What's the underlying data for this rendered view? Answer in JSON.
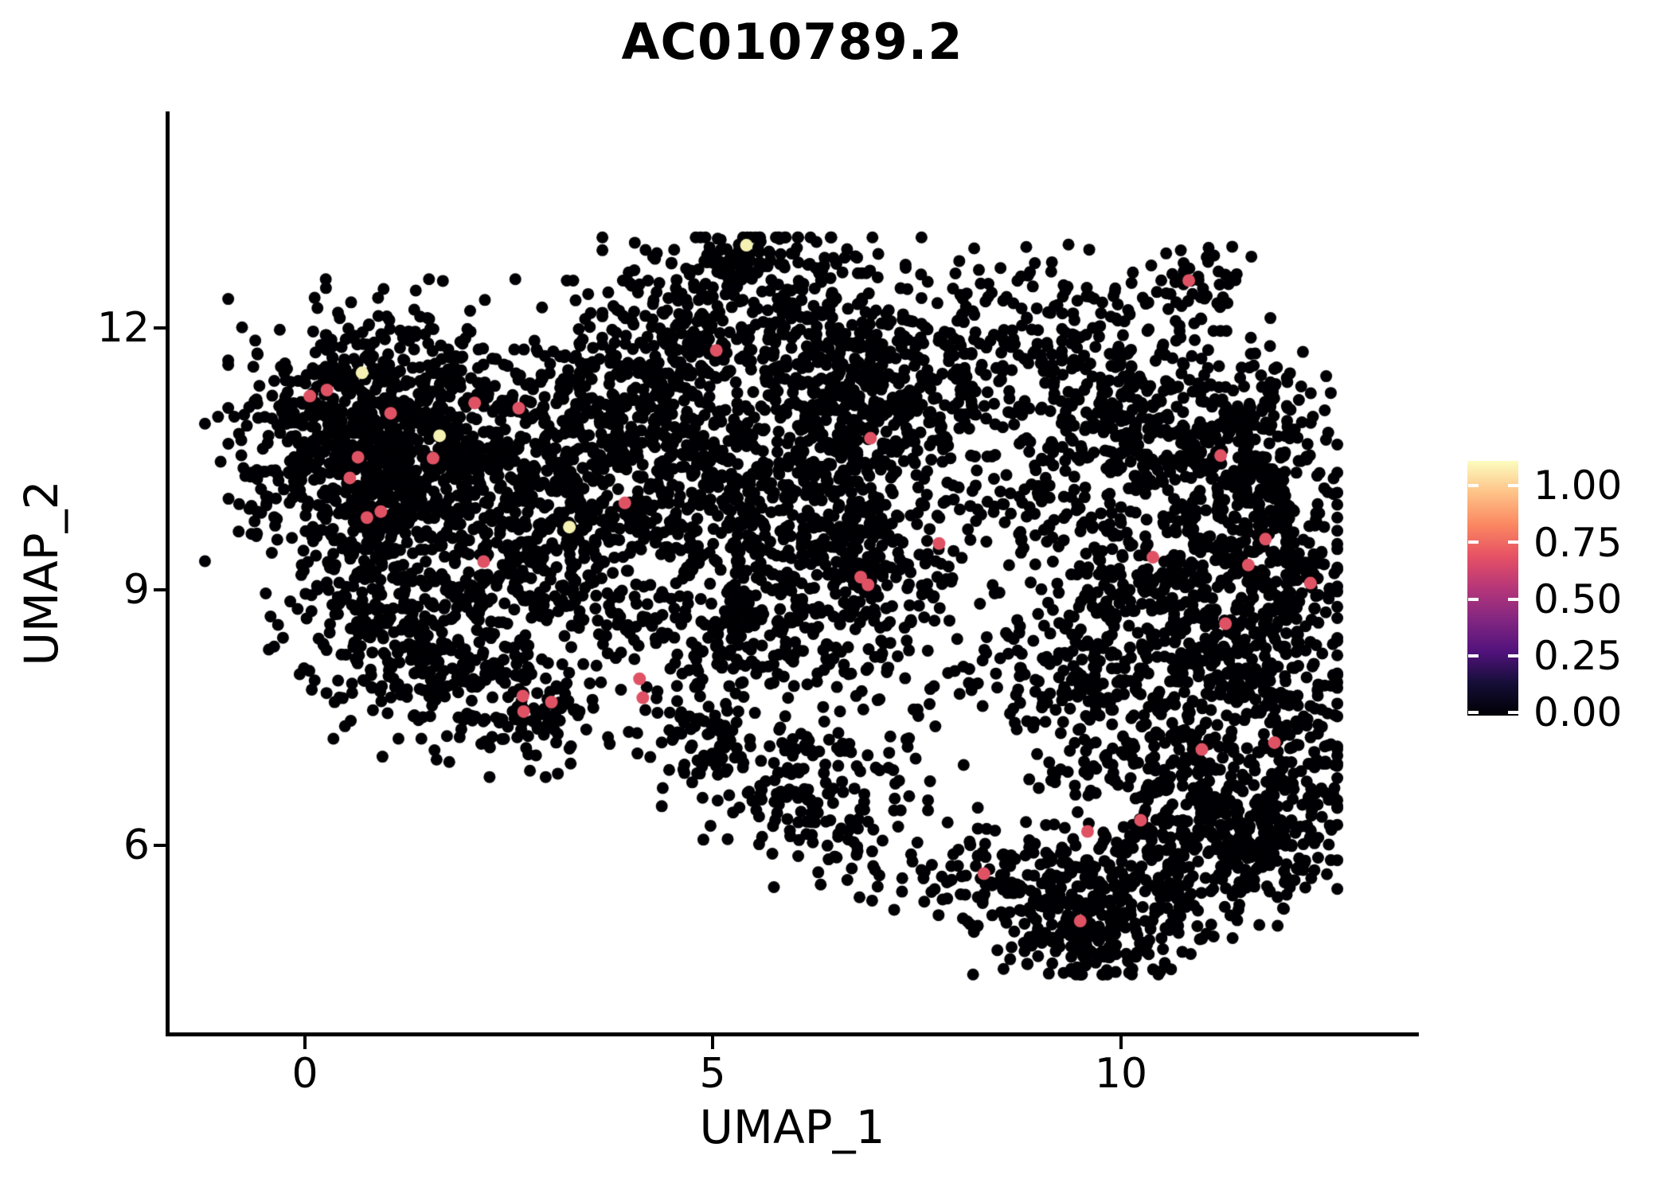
{
  "figure": {
    "title": "AC010789.2",
    "background": "#ffffff"
  },
  "axes": {
    "xlabel": "UMAP_1",
    "ylabel": "UMAP_2",
    "x_tick_labels": [
      "0",
      "5",
      "10"
    ],
    "y_tick_labels": [
      "12",
      "9",
      "6"
    ]
  },
  "colorbar": {
    "tick_labels": [
      "1.00",
      "0.75",
      "0.50",
      "0.25",
      "0.00"
    ],
    "tick_values": [
      1.0,
      0.75,
      0.5,
      0.25,
      0.0
    ],
    "data_max": 1.11,
    "colormap": "magma",
    "gradient_stops": [
      "#000004",
      "#140e36",
      "#51127c",
      "#822681",
      "#b63679",
      "#e65164",
      "#fb8861",
      "#fec287",
      "#fcfdbf"
    ]
  },
  "chart_data": {
    "type": "scatter",
    "title": "AC010789.2",
    "xlabel": "UMAP_1",
    "ylabel": "UMAP_2",
    "x_ticks": [
      0,
      5,
      10
    ],
    "y_ticks": [
      6,
      9,
      12
    ],
    "xlim": [
      -1.7,
      13.6
    ],
    "ylim": [
      3.8,
      14.5
    ],
    "grid": false,
    "legend_position": "right",
    "point_color_base": "#000004",
    "point_radius_px": 7.5,
    "highlight_radius_px": 8,
    "seed": 20240601,
    "background_clusters_format": [
      "cx",
      "cy",
      "sx",
      "sy",
      "n"
    ],
    "background_clusters": [
      [
        0.9,
        11.3,
        0.8,
        0.55,
        320
      ],
      [
        0.5,
        10.4,
        0.75,
        0.5,
        280
      ],
      [
        1.6,
        10.6,
        0.8,
        0.5,
        260
      ],
      [
        2.7,
        10.6,
        0.6,
        0.5,
        170
      ],
      [
        1.3,
        9.6,
        0.85,
        0.45,
        230
      ],
      [
        0.9,
        8.5,
        0.6,
        0.55,
        170
      ],
      [
        1.7,
        8.0,
        0.55,
        0.45,
        120
      ],
      [
        2.75,
        7.55,
        0.45,
        0.33,
        110
      ],
      [
        2.2,
        8.6,
        0.8,
        0.5,
        90
      ],
      [
        2.9,
        9.2,
        0.5,
        0.4,
        70
      ],
      [
        3.5,
        9.8,
        0.6,
        0.5,
        80
      ],
      [
        4.0,
        8.6,
        0.6,
        0.4,
        60
      ],
      [
        3.6,
        10.9,
        0.55,
        0.55,
        120
      ],
      [
        3.9,
        11.5,
        0.6,
        0.45,
        70
      ],
      [
        4.5,
        11.4,
        0.6,
        0.5,
        150
      ],
      [
        5.6,
        12.2,
        0.85,
        0.5,
        300
      ],
      [
        5.5,
        12.85,
        0.35,
        0.25,
        45
      ],
      [
        6.6,
        11.6,
        0.5,
        0.45,
        130
      ],
      [
        7.6,
        11.3,
        0.55,
        0.5,
        140
      ],
      [
        8.7,
        11.9,
        0.8,
        0.5,
        140
      ],
      [
        9.9,
        11.5,
        0.5,
        0.45,
        90
      ],
      [
        10.85,
        12.4,
        0.35,
        0.28,
        55
      ],
      [
        4.6,
        10.1,
        0.8,
        0.65,
        280
      ],
      [
        5.8,
        9.6,
        0.8,
        0.7,
        280
      ],
      [
        6.9,
        9.3,
        0.7,
        0.75,
        260
      ],
      [
        6.4,
        10.7,
        0.6,
        0.5,
        150
      ],
      [
        5.3,
        8.4,
        0.6,
        0.45,
        110
      ],
      [
        4.9,
        7.3,
        0.45,
        0.4,
        80
      ],
      [
        5.8,
        6.8,
        0.5,
        0.4,
        80
      ],
      [
        6.6,
        6.2,
        0.45,
        0.35,
        70
      ],
      [
        7.3,
        7.6,
        0.6,
        0.6,
        50
      ],
      [
        8.1,
        5.6,
        0.5,
        0.35,
        60
      ],
      [
        10.6,
        10.7,
        0.75,
        0.55,
        240
      ],
      [
        11.5,
        9.7,
        0.65,
        0.8,
        280
      ],
      [
        10.3,
        9.0,
        0.75,
        0.65,
        240
      ],
      [
        9.4,
        8.0,
        0.55,
        0.5,
        130
      ],
      [
        11.3,
        7.9,
        0.7,
        0.6,
        220
      ],
      [
        10.6,
        6.9,
        0.75,
        0.5,
        200
      ],
      [
        12.1,
        8.9,
        0.35,
        0.85,
        150
      ],
      [
        8.9,
        10.3,
        0.7,
        0.6,
        120
      ],
      [
        11.6,
        11.0,
        0.45,
        0.5,
        80
      ],
      [
        12.2,
        7.0,
        0.3,
        0.5,
        70
      ],
      [
        10.2,
        5.6,
        0.85,
        0.45,
        230
      ],
      [
        9.3,
        5.1,
        0.55,
        0.35,
        120
      ],
      [
        11.4,
        6.1,
        0.55,
        0.45,
        140
      ],
      [
        11.8,
        6.0,
        0.45,
        0.4,
        90
      ],
      [
        10.0,
        4.8,
        0.5,
        0.25,
        70
      ]
    ],
    "highlighted_points_format": [
      "x",
      "y",
      "value",
      "color"
    ],
    "highlighted_points": [
      [
        5.41,
        12.96,
        1.0,
        "#f4f1b2"
      ],
      [
        0.7,
        11.48,
        1.0,
        "#f4f1b2"
      ],
      [
        1.65,
        10.75,
        1.0,
        "#f4f1b2"
      ],
      [
        3.24,
        9.69,
        1.0,
        "#f4f1b2"
      ],
      [
        0.06,
        11.21,
        0.7,
        "#df5264"
      ],
      [
        0.27,
        11.28,
        0.7,
        "#df5264"
      ],
      [
        1.05,
        11.01,
        0.7,
        "#df5264"
      ],
      [
        2.08,
        11.13,
        0.7,
        "#df5264"
      ],
      [
        2.62,
        11.07,
        0.7,
        "#df5264"
      ],
      [
        1.57,
        10.49,
        0.7,
        "#df5264"
      ],
      [
        0.65,
        10.5,
        0.7,
        "#df5264"
      ],
      [
        0.55,
        10.26,
        0.7,
        "#df5264"
      ],
      [
        0.93,
        9.87,
        0.7,
        "#df5264"
      ],
      [
        0.76,
        9.8,
        0.7,
        "#df5264"
      ],
      [
        2.19,
        9.29,
        0.7,
        "#df5264"
      ],
      [
        3.92,
        9.97,
        0.7,
        "#df5264"
      ],
      [
        5.04,
        11.74,
        0.7,
        "#df5264"
      ],
      [
        6.93,
        10.72,
        0.7,
        "#df5264"
      ],
      [
        7.77,
        9.5,
        0.7,
        "#df5264"
      ],
      [
        6.81,
        9.11,
        0.7,
        "#df5264"
      ],
      [
        6.9,
        9.02,
        0.7,
        "#df5264"
      ],
      [
        4.1,
        7.93,
        0.7,
        "#df5264"
      ],
      [
        4.14,
        7.71,
        0.7,
        "#df5264"
      ],
      [
        2.67,
        7.73,
        0.7,
        "#df5264"
      ],
      [
        3.02,
        7.66,
        0.7,
        "#df5264"
      ],
      [
        2.68,
        7.55,
        0.7,
        "#df5264"
      ],
      [
        10.83,
        12.55,
        0.7,
        "#df5264"
      ],
      [
        11.22,
        10.52,
        0.7,
        "#df5264"
      ],
      [
        10.39,
        9.34,
        0.7,
        "#df5264"
      ],
      [
        11.77,
        9.55,
        0.7,
        "#df5264"
      ],
      [
        11.56,
        9.25,
        0.7,
        "#df5264"
      ],
      [
        12.32,
        9.04,
        0.7,
        "#df5264"
      ],
      [
        11.28,
        8.57,
        0.7,
        "#df5264"
      ],
      [
        11.88,
        7.19,
        0.7,
        "#df5264"
      ],
      [
        10.99,
        7.11,
        0.7,
        "#df5264"
      ],
      [
        10.24,
        6.29,
        0.7,
        "#df5264"
      ],
      [
        9.59,
        6.16,
        0.7,
        "#df5264"
      ],
      [
        8.32,
        5.67,
        0.7,
        "#df5264"
      ],
      [
        9.5,
        5.12,
        0.7,
        "#df5264"
      ]
    ]
  }
}
